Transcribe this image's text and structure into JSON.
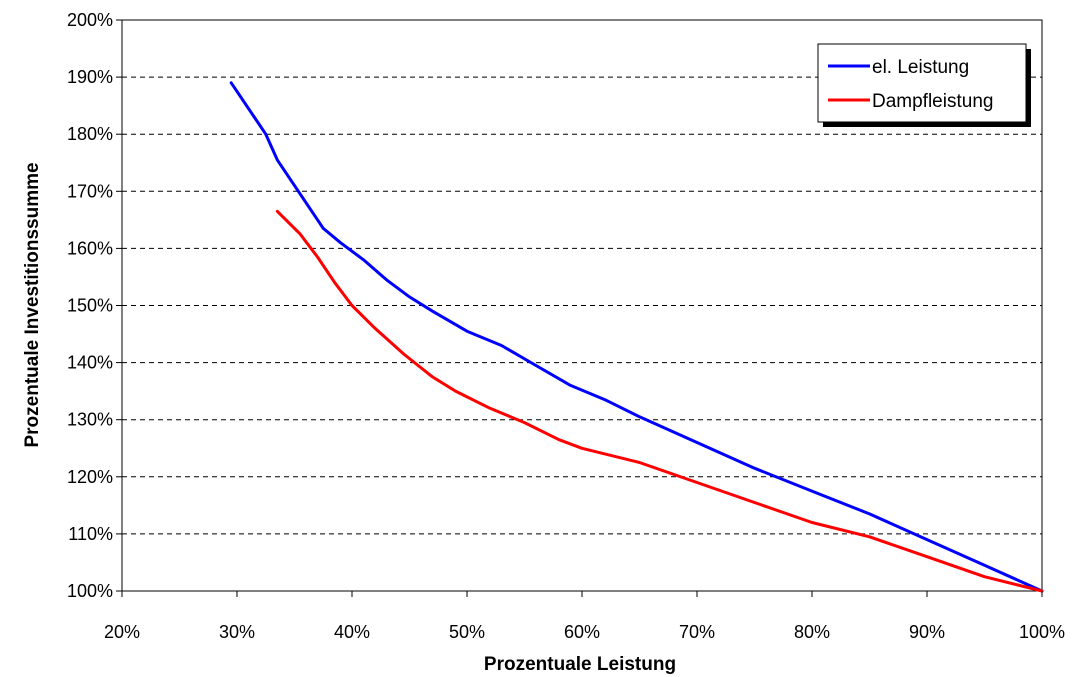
{
  "chart_data": {
    "type": "line",
    "xlabel": "Prozentuale Leistung",
    "ylabel": "Prozentuale Investitionssumme",
    "xlim": [
      0.2,
      1.0
    ],
    "ylim": [
      1.0,
      2.0
    ],
    "x_ticks": [
      "20%",
      "30%",
      "40%",
      "50%",
      "60%",
      "70%",
      "80%",
      "90%",
      "100%"
    ],
    "y_ticks": [
      "100%",
      "110%",
      "120%",
      "130%",
      "140%",
      "150%",
      "160%",
      "170%",
      "180%",
      "190%",
      "200%"
    ],
    "grid": "horizontal dashed",
    "legend_position": "top-right",
    "series": [
      {
        "name": "el. Leistung",
        "color": "#0000ff",
        "points": [
          [
            0.295,
            1.89
          ],
          [
            0.315,
            1.83
          ],
          [
            0.325,
            1.8
          ],
          [
            0.335,
            1.755
          ],
          [
            0.35,
            1.71
          ],
          [
            0.365,
            1.665
          ],
          [
            0.375,
            1.635
          ],
          [
            0.39,
            1.61
          ],
          [
            0.41,
            1.58
          ],
          [
            0.43,
            1.545
          ],
          [
            0.45,
            1.515
          ],
          [
            0.47,
            1.49
          ],
          [
            0.5,
            1.455
          ],
          [
            0.53,
            1.43
          ],
          [
            0.56,
            1.395
          ],
          [
            0.59,
            1.36
          ],
          [
            0.62,
            1.335
          ],
          [
            0.65,
            1.305
          ],
          [
            0.7,
            1.26
          ],
          [
            0.75,
            1.215
          ],
          [
            0.8,
            1.175
          ],
          [
            0.85,
            1.135
          ],
          [
            0.9,
            1.09
          ],
          [
            0.95,
            1.045
          ],
          [
            1.0,
            1.0
          ]
        ]
      },
      {
        "name": "Dampfleistung",
        "color": "#ff0000",
        "points": [
          [
            0.335,
            1.665
          ],
          [
            0.355,
            1.625
          ],
          [
            0.37,
            1.585
          ],
          [
            0.385,
            1.54
          ],
          [
            0.4,
            1.5
          ],
          [
            0.42,
            1.46
          ],
          [
            0.445,
            1.415
          ],
          [
            0.47,
            1.375
          ],
          [
            0.49,
            1.35
          ],
          [
            0.52,
            1.32
          ],
          [
            0.55,
            1.295
          ],
          [
            0.58,
            1.265
          ],
          [
            0.6,
            1.25
          ],
          [
            0.65,
            1.225
          ],
          [
            0.7,
            1.19
          ],
          [
            0.75,
            1.155
          ],
          [
            0.8,
            1.12
          ],
          [
            0.85,
            1.095
          ],
          [
            0.9,
            1.06
          ],
          [
            0.95,
            1.025
          ],
          [
            1.0,
            1.0
          ]
        ]
      }
    ]
  }
}
